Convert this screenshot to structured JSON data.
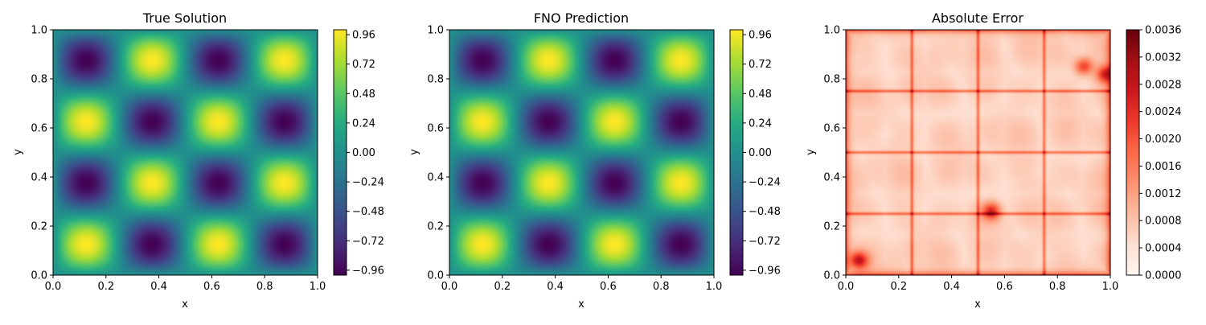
{
  "chart_data": [
    {
      "type": "heatmap",
      "title": "True Solution",
      "xlabel": "x",
      "ylabel": "y",
      "xlim": [
        0.0,
        1.0
      ],
      "ylim": [
        0.0,
        1.0
      ],
      "x_ticks": [
        "0.0",
        "0.2",
        "0.4",
        "0.6",
        "0.8",
        "1.0"
      ],
      "y_ticks": [
        "0.0",
        "0.2",
        "0.4",
        "0.6",
        "0.8",
        "1.0"
      ],
      "colormap": "viridis",
      "colorbar_range": [
        -1.0,
        1.0
      ],
      "colorbar_ticks": [
        "0.96",
        "0.72",
        "0.48",
        "0.24",
        "0.00",
        "−0.24",
        "−0.48",
        "−0.72",
        "−0.96"
      ],
      "grid": false,
      "field": "sin(4πx)·sin(4πy)",
      "peaks": [
        {
          "x": 0.125,
          "y": 0.125,
          "value": 1
        },
        {
          "x": 0.375,
          "y": 0.125,
          "value": -1
        },
        {
          "x": 0.625,
          "y": 0.125,
          "value": 1
        },
        {
          "x": 0.875,
          "y": 0.125,
          "value": -1
        },
        {
          "x": 0.125,
          "y": 0.375,
          "value": -1
        },
        {
          "x": 0.375,
          "y": 0.375,
          "value": 1
        },
        {
          "x": 0.625,
          "y": 0.375,
          "value": -1
        },
        {
          "x": 0.875,
          "y": 0.375,
          "value": 1
        },
        {
          "x": 0.125,
          "y": 0.625,
          "value": 1
        },
        {
          "x": 0.375,
          "y": 0.625,
          "value": -1
        },
        {
          "x": 0.625,
          "y": 0.625,
          "value": 1
        },
        {
          "x": 0.875,
          "y": 0.625,
          "value": -1
        },
        {
          "x": 0.125,
          "y": 0.875,
          "value": -1
        },
        {
          "x": 0.375,
          "y": 0.875,
          "value": 1
        },
        {
          "x": 0.625,
          "y": 0.875,
          "value": -1
        },
        {
          "x": 0.875,
          "y": 0.875,
          "value": 1
        }
      ]
    },
    {
      "type": "heatmap",
      "title": "FNO Prediction",
      "xlabel": "x",
      "ylabel": "y",
      "xlim": [
        0.0,
        1.0
      ],
      "ylim": [
        0.0,
        1.0
      ],
      "x_ticks": [
        "0.0",
        "0.2",
        "0.4",
        "0.6",
        "0.8",
        "1.0"
      ],
      "y_ticks": [
        "0.0",
        "0.2",
        "0.4",
        "0.6",
        "0.8",
        "1.0"
      ],
      "colormap": "viridis",
      "colorbar_range": [
        -1.0,
        1.0
      ],
      "colorbar_ticks": [
        "0.96",
        "0.72",
        "0.48",
        "0.24",
        "0.00",
        "−0.24",
        "−0.48",
        "−0.72",
        "−0.96"
      ],
      "grid": false,
      "field": "sin(4πx)·sin(4πy)"
    },
    {
      "type": "heatmap",
      "title": "Absolute Error",
      "xlabel": "x",
      "ylabel": "y",
      "xlim": [
        0.0,
        1.0
      ],
      "ylim": [
        0.0,
        1.0
      ],
      "x_ticks": [
        "0.0",
        "0.2",
        "0.4",
        "0.6",
        "0.8",
        "1.0"
      ],
      "y_ticks": [
        "0.0",
        "0.2",
        "0.4",
        "0.6",
        "0.8",
        "1.0"
      ],
      "colormap": "reds",
      "colorbar_range": [
        0.0,
        0.0036
      ],
      "colorbar_ticks": [
        "0.0036",
        "0.0032",
        "0.0028",
        "0.0024",
        "0.0020",
        "0.0016",
        "0.0012",
        "0.0008",
        "0.0004",
        "0.0000"
      ],
      "grid": false,
      "features": [
        {
          "type": "cell-boundary-x",
          "value": 0.25
        },
        {
          "type": "cell-boundary-x",
          "value": 0.5
        },
        {
          "type": "cell-boundary-x",
          "value": 0.75
        },
        {
          "type": "cell-boundary-y",
          "value": 0.25
        },
        {
          "type": "cell-boundary-y",
          "value": 0.5
        },
        {
          "type": "cell-boundary-y",
          "value": 0.75
        },
        {
          "type": "hotspot",
          "x": 0.05,
          "y": 0.06,
          "value": 0.0034
        },
        {
          "type": "hotspot",
          "x": 0.9,
          "y": 0.85,
          "value": 0.0028
        },
        {
          "type": "hotspot",
          "x": 0.98,
          "y": 0.82,
          "value": 0.0032
        },
        {
          "type": "hotspot",
          "x": 0.55,
          "y": 0.26,
          "value": 0.003
        }
      ]
    }
  ]
}
